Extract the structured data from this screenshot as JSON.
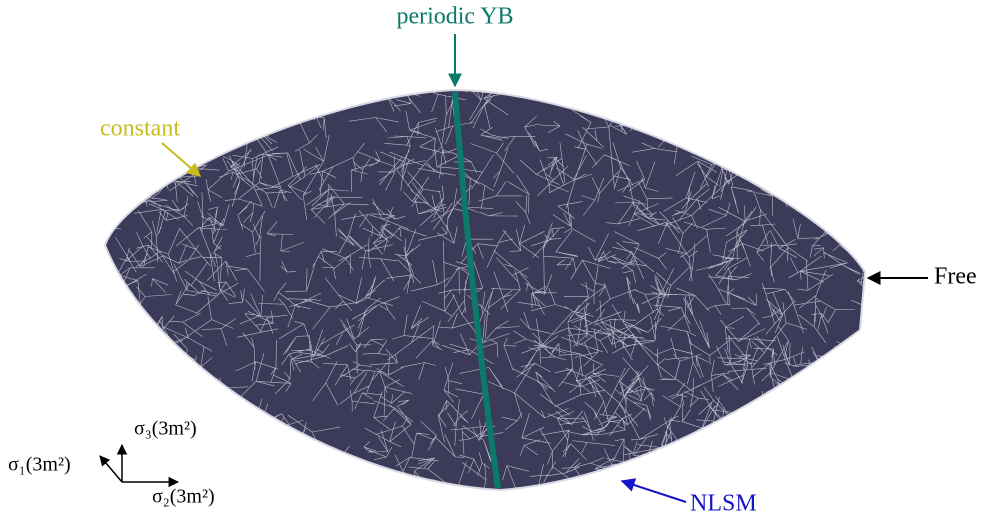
{
  "labels": {
    "top": "periodic YB",
    "left": "constant",
    "right": "Free",
    "bottom": "NLSM"
  },
  "axes": {
    "up": "σ₃(3m²)",
    "diagonal": "σ₁(3m²)",
    "right": "σ₂(3m²)"
  }
}
